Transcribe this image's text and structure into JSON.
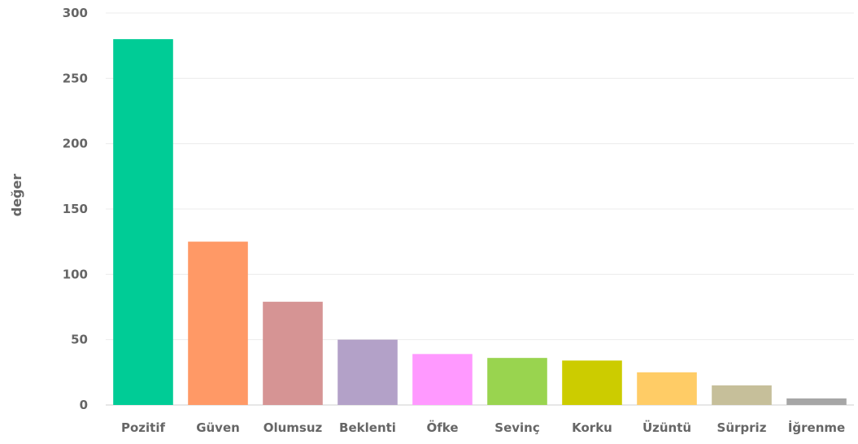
{
  "chart_data": {
    "type": "bar",
    "title": "",
    "xlabel": "",
    "ylabel": "değer",
    "ylim": [
      0,
      300
    ],
    "yticks": [
      0,
      50,
      100,
      150,
      200,
      250,
      300
    ],
    "grid": true,
    "categories": [
      "Pozitif",
      "Güven",
      "Olumsuz",
      "Beklenti",
      "Öfke",
      "Sevinç",
      "Korku",
      "Üzüntü",
      "Sürpriz",
      "İğrenme"
    ],
    "values": [
      280,
      125,
      79,
      50,
      39,
      36,
      34,
      25,
      15,
      5
    ],
    "colors": [
      "#00cc96",
      "#ff9966",
      "#d69494",
      "#b3a1c8",
      "#ff99ff",
      "#99d44f",
      "#cccc00",
      "#ffcc66",
      "#c6bf9a",
      "#a6a6a6"
    ]
  }
}
